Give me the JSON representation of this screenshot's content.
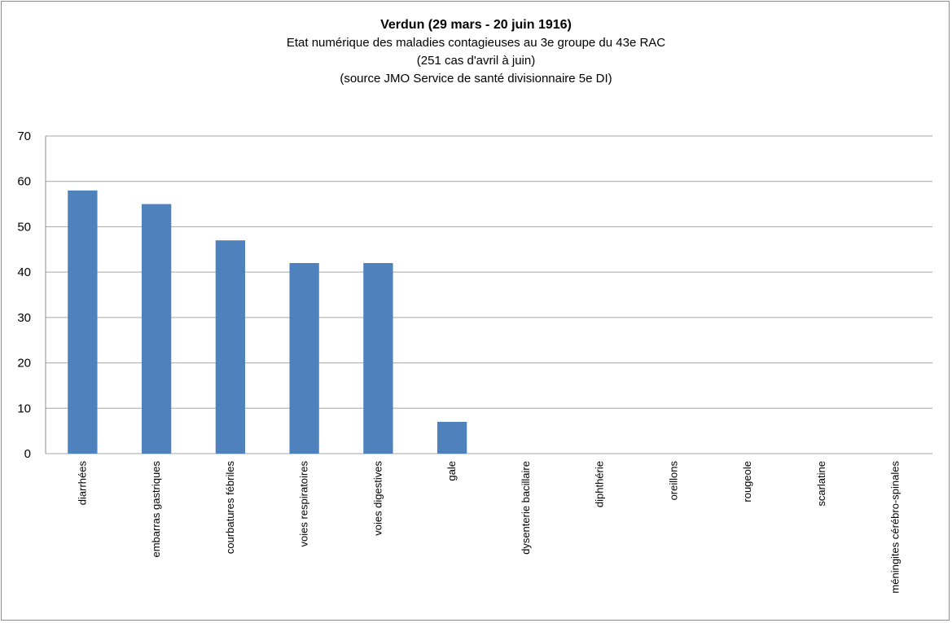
{
  "chart_data": {
    "type": "bar",
    "title": "Verdun (29 mars - 20 juin 1916)",
    "subtitles": [
      "Etat numérique des maladies  contagieuses au 3e groupe du 43e RAC",
      "(251 cas d'avril à juin)",
      "(source JMO  Service de santé divisionnaire 5e DI)"
    ],
    "categories": [
      "diarrhées",
      "embarras gastriques",
      "courbatures fébriles",
      "voies respiratoires",
      "voies digestives",
      "gale",
      "dysenterie bacillaire",
      "diphthérie",
      "oreillons",
      "rougeole",
      "scarlatine",
      "méningites cérébro-spinales"
    ],
    "values": [
      58,
      55,
      47,
      42,
      42,
      7,
      0,
      0,
      0,
      0,
      0,
      0
    ],
    "ylim": [
      0,
      70
    ],
    "yticks": [
      0,
      10,
      20,
      30,
      40,
      50,
      60,
      70
    ],
    "grid": true,
    "legend": "none",
    "bar_color": "#4f81bd",
    "grid_color": "#a6a6a6"
  }
}
